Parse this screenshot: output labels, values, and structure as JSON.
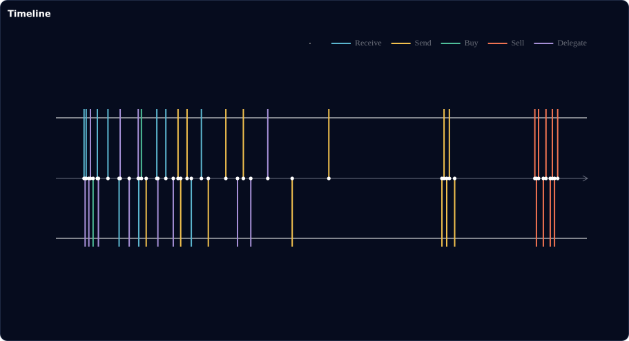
{
  "chart_data": {
    "type": "timeline",
    "title": "Timeline",
    "xlim": [
      0,
      1000
    ],
    "series": [
      {
        "name": "Receive",
        "color": "#5bb6cf",
        "values": [
          53,
          57,
          78,
          98,
          119,
          156,
          190,
          207,
          255,
          274
        ]
      },
      {
        "name": "Send",
        "color": "#f2c14e",
        "values": [
          170,
          230,
          235,
          247,
          287,
          320,
          353,
          445,
          514,
          727,
          731,
          736,
          741,
          751
        ]
      },
      {
        "name": "Buy",
        "color": "#4fbf9a",
        "values": [
          70,
          161
        ]
      },
      {
        "name": "Sell",
        "color": "#ef7352",
        "values": [
          902,
          905,
          909,
          918,
          923,
          931,
          935,
          939,
          945
        ]
      },
      {
        "name": "Delegate",
        "color": "#a58fd6",
        "values": [
          55,
          62,
          65,
          80,
          121,
          138,
          155,
          192,
          221,
          342,
          367,
          399
        ]
      }
    ]
  }
}
